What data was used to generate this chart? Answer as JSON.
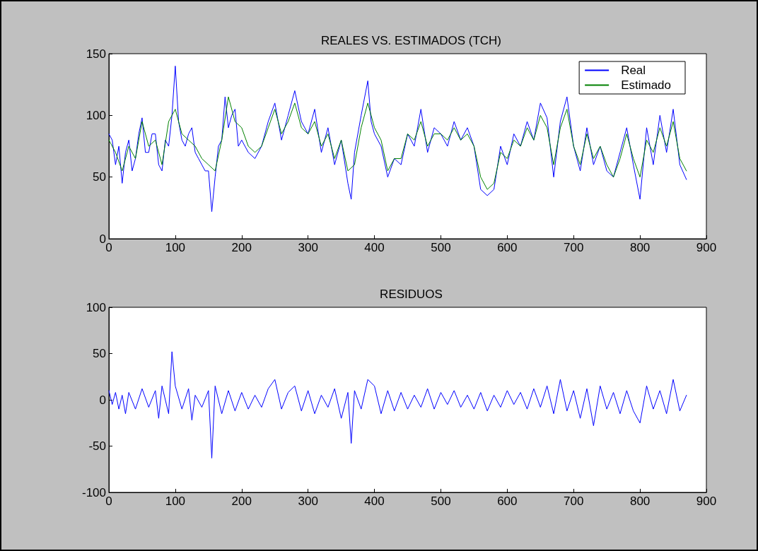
{
  "chart_data": [
    {
      "type": "line",
      "title": "REALES VS. ESTIMADOS (TCH)",
      "xlim": [
        0,
        900
      ],
      "xticks": [
        0,
        100,
        200,
        300,
        400,
        500,
        600,
        700,
        800,
        900
      ],
      "ylim": [
        0,
        150
      ],
      "yticks": [
        0,
        50,
        100,
        150
      ],
      "grid": false,
      "legend": "top right",
      "marker": "none",
      "line_style": "solid",
      "series": [
        {
          "name": "Real",
          "color": "#0000ff",
          "x": [
            0,
            5,
            10,
            15,
            20,
            25,
            30,
            35,
            40,
            45,
            50,
            55,
            60,
            65,
            70,
            75,
            80,
            85,
            90,
            95,
            100,
            105,
            110,
            115,
            120,
            125,
            130,
            135,
            140,
            145,
            150,
            155,
            160,
            165,
            170,
            175,
            180,
            185,
            190,
            195,
            200,
            210,
            220,
            230,
            240,
            250,
            260,
            270,
            280,
            290,
            300,
            310,
            320,
            330,
            340,
            350,
            360,
            365,
            370,
            380,
            390,
            395,
            400,
            410,
            420,
            430,
            440,
            450,
            460,
            470,
            480,
            490,
            500,
            510,
            520,
            530,
            540,
            550,
            560,
            570,
            580,
            590,
            600,
            610,
            620,
            630,
            640,
            650,
            660,
            670,
            680,
            690,
            700,
            710,
            720,
            730,
            740,
            750,
            760,
            770,
            780,
            790,
            800,
            810,
            820,
            830,
            840,
            850,
            860,
            870
          ],
          "values": [
            85,
            80,
            60,
            75,
            45,
            70,
            80,
            55,
            65,
            85,
            98,
            70,
            70,
            85,
            85,
            60,
            55,
            80,
            75,
            100,
            140,
            95,
            80,
            75,
            85,
            90,
            70,
            65,
            60,
            55,
            55,
            22,
            50,
            75,
            80,
            115,
            90,
            100,
            105,
            75,
            80,
            70,
            65,
            75,
            95,
            110,
            80,
            100,
            120,
            95,
            85,
            105,
            70,
            90,
            60,
            80,
            45,
            32,
            70,
            100,
            128,
            95,
            85,
            75,
            50,
            65,
            60,
            85,
            75,
            105,
            70,
            90,
            85,
            75,
            95,
            80,
            90,
            75,
            40,
            35,
            40,
            75,
            60,
            85,
            75,
            95,
            80,
            110,
            98,
            50,
            95,
            115,
            75,
            55,
            90,
            60,
            75,
            55,
            50,
            70,
            90,
            60,
            32,
            90,
            60,
            100,
            70,
            105,
            60,
            48
          ]
        },
        {
          "name": "Estimado",
          "color": "#008000",
          "x": [
            0,
            10,
            20,
            30,
            40,
            50,
            60,
            70,
            80,
            90,
            100,
            110,
            120,
            130,
            140,
            150,
            160,
            170,
            180,
            190,
            200,
            210,
            220,
            230,
            240,
            250,
            260,
            270,
            280,
            290,
            300,
            310,
            320,
            330,
            340,
            350,
            360,
            370,
            380,
            390,
            400,
            410,
            420,
            430,
            440,
            450,
            460,
            470,
            480,
            490,
            500,
            510,
            520,
            530,
            540,
            550,
            560,
            570,
            580,
            590,
            600,
            610,
            620,
            630,
            640,
            650,
            660,
            670,
            680,
            690,
            700,
            710,
            720,
            730,
            740,
            750,
            760,
            770,
            780,
            790,
            800,
            810,
            820,
            830,
            840,
            850,
            860,
            870
          ],
          "values": [
            80,
            70,
            55,
            75,
            65,
            95,
            75,
            80,
            60,
            95,
            105,
            85,
            80,
            75,
            65,
            60,
            55,
            80,
            115,
            95,
            90,
            75,
            70,
            75,
            90,
            105,
            85,
            95,
            110,
            90,
            85,
            95,
            75,
            85,
            65,
            80,
            55,
            60,
            90,
            110,
            90,
            80,
            55,
            65,
            65,
            85,
            80,
            95,
            75,
            85,
            85,
            80,
            90,
            80,
            85,
            75,
            50,
            40,
            45,
            70,
            65,
            80,
            75,
            90,
            80,
            100,
            90,
            60,
            90,
            105,
            75,
            60,
            85,
            65,
            75,
            60,
            50,
            65,
            85,
            65,
            50,
            80,
            70,
            90,
            75,
            95,
            65,
            55
          ]
        }
      ]
    },
    {
      "type": "line",
      "title": "RESIDUOS",
      "xlim": [
        0,
        900
      ],
      "xticks": [
        0,
        100,
        200,
        300,
        400,
        500,
        600,
        700,
        800,
        900
      ],
      "ylim": [
        -100,
        100
      ],
      "yticks": [
        -100,
        -50,
        0,
        50,
        100
      ],
      "grid": false,
      "marker": "none",
      "line_style": "solid",
      "series": [
        {
          "color": "#0000ff",
          "x": [
            0,
            5,
            10,
            15,
            20,
            25,
            30,
            40,
            50,
            60,
            70,
            75,
            80,
            90,
            95,
            100,
            110,
            120,
            125,
            130,
            140,
            150,
            155,
            160,
            170,
            180,
            190,
            200,
            210,
            220,
            230,
            240,
            250,
            260,
            270,
            280,
            290,
            300,
            310,
            320,
            330,
            340,
            350,
            360,
            365,
            370,
            380,
            390,
            400,
            410,
            420,
            430,
            440,
            450,
            460,
            470,
            480,
            490,
            500,
            510,
            520,
            530,
            540,
            550,
            560,
            570,
            580,
            590,
            600,
            610,
            620,
            630,
            640,
            650,
            660,
            670,
            680,
            690,
            700,
            710,
            720,
            730,
            740,
            750,
            760,
            770,
            780,
            790,
            800,
            810,
            820,
            830,
            840,
            850,
            860,
            870
          ],
          "values": [
            10,
            -5,
            8,
            -10,
            5,
            -15,
            8,
            -10,
            12,
            -8,
            10,
            -20,
            15,
            -15,
            52,
            15,
            -10,
            12,
            -22,
            5,
            -8,
            10,
            -63,
            15,
            -15,
            10,
            -12,
            8,
            -10,
            5,
            -8,
            12,
            22,
            -10,
            8,
            15,
            -12,
            10,
            -15,
            5,
            -8,
            12,
            -20,
            8,
            -47,
            10,
            -10,
            22,
            15,
            -15,
            10,
            -12,
            8,
            -10,
            5,
            -8,
            12,
            -10,
            8,
            -5,
            10,
            -8,
            5,
            -10,
            8,
            -12,
            5,
            -8,
            10,
            -5,
            8,
            -10,
            12,
            -8,
            15,
            -15,
            22,
            -12,
            10,
            -20,
            12,
            -28,
            15,
            -10,
            8,
            -15,
            10,
            -12,
            -25,
            15,
            -10,
            10,
            -15,
            22,
            -12,
            5
          ]
        }
      ]
    }
  ]
}
